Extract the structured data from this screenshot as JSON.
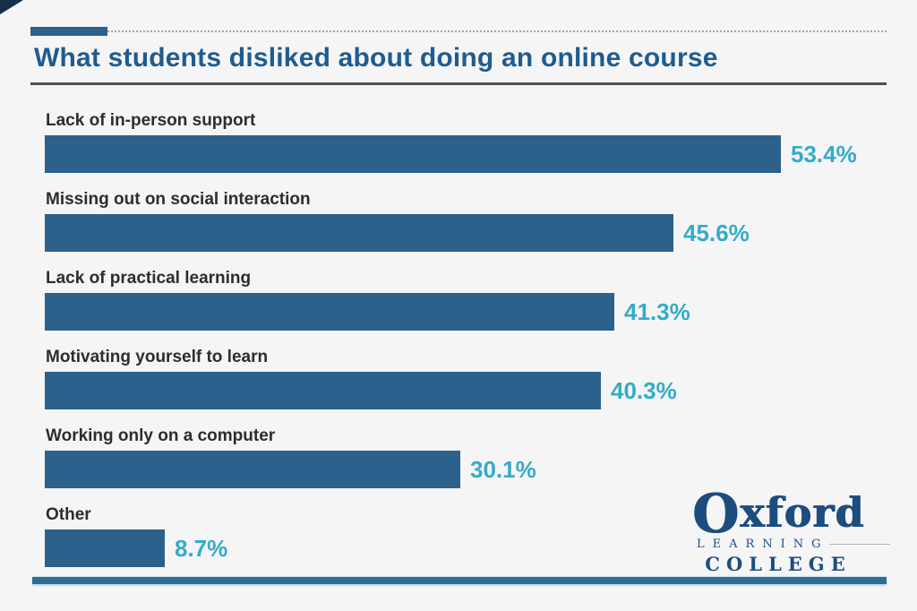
{
  "page": {
    "background_color": "#f5f5f6",
    "accent_color": "#2b618a",
    "value_text_color": "#35abc9",
    "title_color": "#1e5c8f"
  },
  "header": {
    "title": "What students disliked about doing an online course"
  },
  "chart_data": {
    "type": "bar",
    "orientation": "horizontal",
    "title": "What students disliked about doing an online course",
    "xlabel": "",
    "ylabel": "",
    "xlim": [
      0,
      60
    ],
    "grid": false,
    "legend": null,
    "bar_color": "#2b618a",
    "categories": [
      "Lack of in-person support",
      "Missing out on social interaction",
      "Lack of practical learning",
      "Motivating yourself to learn",
      "Working only on a computer",
      "Other"
    ],
    "values": [
      53.4,
      45.6,
      41.3,
      40.3,
      30.1,
      8.7
    ],
    "value_labels": [
      "53.4%",
      "45.6%",
      "41.3%",
      "40.3%",
      "30.1%",
      "8.7%"
    ]
  },
  "logo": {
    "word_initial": "O",
    "word_rest": "xford",
    "line2": "LEARNING",
    "line3": "COLLEGE"
  }
}
